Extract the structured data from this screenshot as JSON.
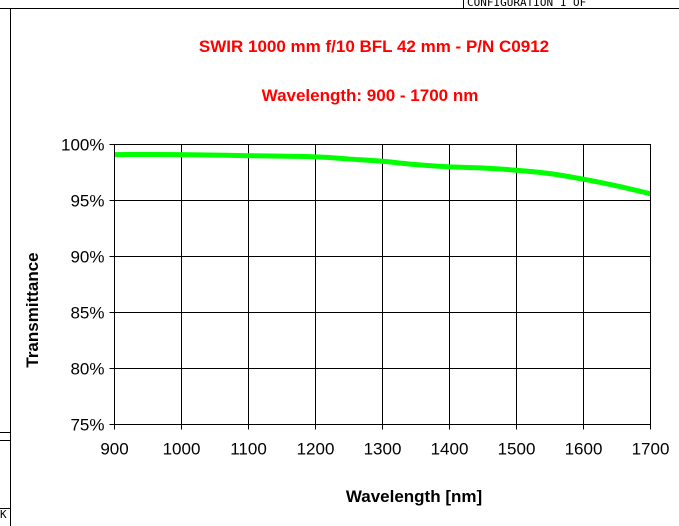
{
  "header_fragment": "CONFIGURATION 1 OF",
  "side_fragment": "K",
  "chart_data": {
    "type": "line",
    "title": "SWIR 1000 mm f/10 BFL 42 mm - P/N C0912",
    "subtitle": "Wavelength: 900 - 1700 nm",
    "xlabel": "Wavelength [nm]",
    "ylabel": "Transmittance",
    "xlim": [
      900,
      1700
    ],
    "ylim": [
      75,
      100
    ],
    "x_ticks": [
      900,
      1000,
      1100,
      1200,
      1300,
      1400,
      1500,
      1600,
      1700
    ],
    "x_tick_labels": [
      "900",
      "1000",
      "1100",
      "1200",
      "1300",
      "1400",
      "1500",
      "1600",
      "1700"
    ],
    "y_ticks": [
      75,
      80,
      85,
      90,
      95,
      100
    ],
    "y_tick_labels": [
      "75%",
      "80%",
      "85%",
      "90%",
      "95%",
      "100%"
    ],
    "grid": true,
    "legend": "none",
    "line_color": "#00ff00",
    "series": [
      {
        "x": [
          900,
          1000,
          1100,
          1200,
          1250,
          1300,
          1350,
          1400,
          1450,
          1500,
          1550,
          1600,
          1650,
          1700
        ],
        "y": [
          99.1,
          99.1,
          99.0,
          98.9,
          98.7,
          98.5,
          98.2,
          98.0,
          97.9,
          97.7,
          97.4,
          96.9,
          96.3,
          95.6
        ]
      }
    ]
  }
}
